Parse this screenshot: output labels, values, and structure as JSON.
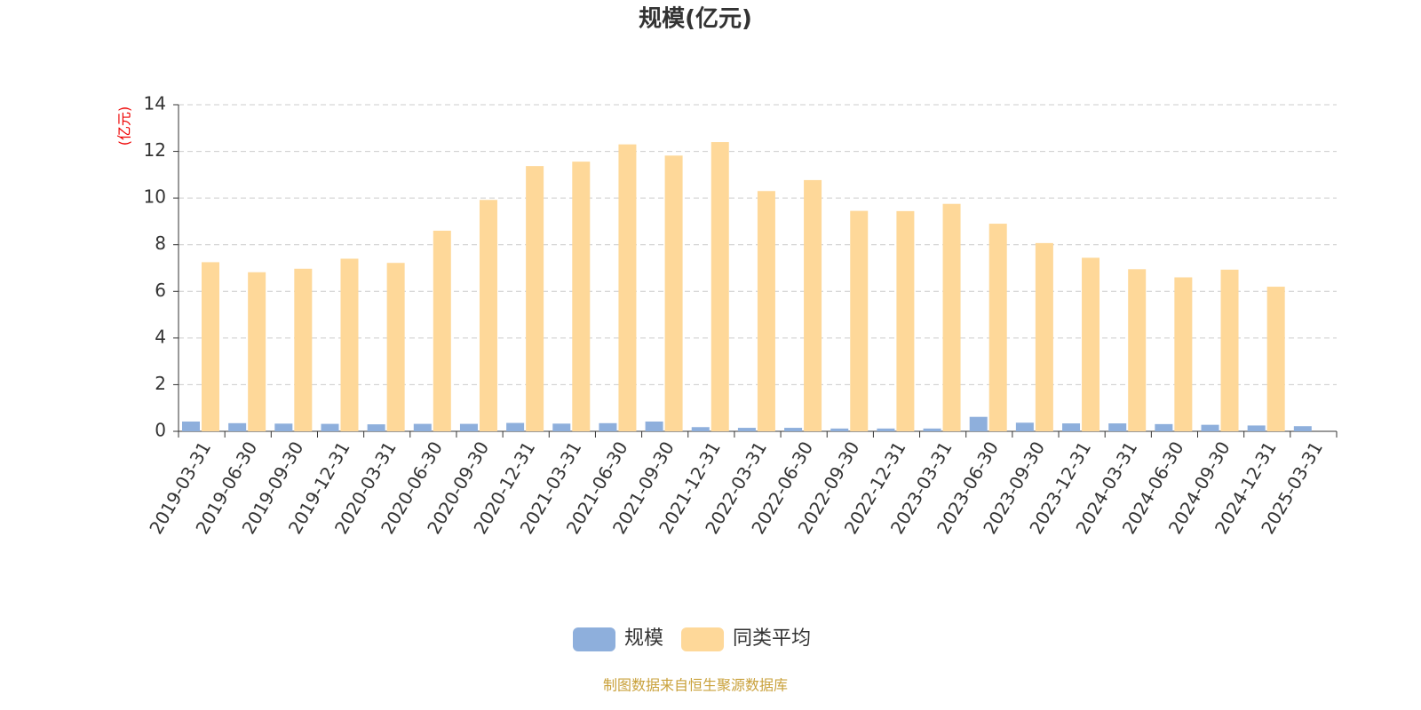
{
  "chart_data": {
    "type": "bar",
    "title": "规模(亿元)",
    "y_label": "(亿元)",
    "note": "制图数据来自恒生聚源数据库",
    "categories": [
      "2019-03-31",
      "2019-06-30",
      "2019-09-30",
      "2019-12-31",
      "2020-03-31",
      "2020-06-30",
      "2020-09-30",
      "2020-12-31",
      "2021-03-31",
      "2021-06-30",
      "2021-09-30",
      "2021-12-31",
      "2022-03-31",
      "2022-06-30",
      "2022-09-30",
      "2022-12-31",
      "2023-03-31",
      "2023-06-30",
      "2023-09-30",
      "2023-12-31",
      "2024-03-31",
      "2024-06-30",
      "2024-09-30",
      "2024-12-31",
      "2025-03-31"
    ],
    "series": [
      {
        "name": "规模",
        "color": "#8eafdc",
        "values": [
          0.42,
          0.35,
          0.33,
          0.32,
          0.3,
          0.32,
          0.32,
          0.36,
          0.33,
          0.35,
          0.42,
          0.18,
          0.15,
          0.15,
          0.12,
          0.12,
          0.12,
          0.62,
          0.37,
          0.34,
          0.34,
          0.31,
          0.28,
          0.25,
          0.22
        ]
      },
      {
        "name": "同类平均",
        "color": "#fed899",
        "values": [
          7.25,
          6.82,
          6.97,
          7.4,
          7.22,
          8.6,
          9.92,
          11.37,
          11.56,
          12.3,
          11.82,
          12.4,
          10.3,
          10.77,
          9.45,
          9.44,
          9.75,
          8.9,
          8.07,
          7.44,
          6.95,
          6.6,
          6.93,
          6.2,
          null
        ]
      }
    ],
    "ylim": [
      0,
      14
    ],
    "yticks": [
      0,
      2,
      4,
      6,
      8,
      10,
      12,
      14
    ],
    "grid": true
  }
}
